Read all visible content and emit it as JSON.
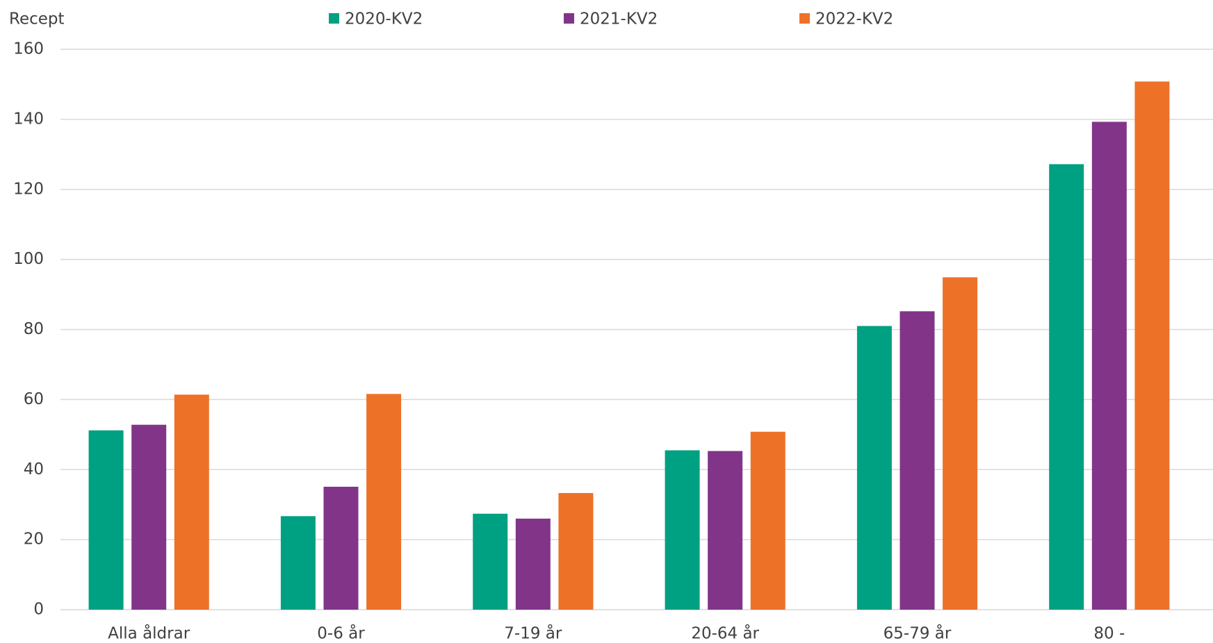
{
  "chart_data": {
    "type": "bar",
    "y_axis_label": "Recept",
    "categories": [
      "Alla åldrar",
      "0-6 år",
      "7-19 år",
      "20-64 år",
      "65-79 år",
      "80 -"
    ],
    "series": [
      {
        "name": "2020-KV2",
        "color": "#00a082",
        "values": [
          51.2,
          26.7,
          27.4,
          45.5,
          81.0,
          127.2
        ]
      },
      {
        "name": "2021-KV2",
        "color": "#823588",
        "values": [
          52.8,
          35.1,
          26.0,
          45.3,
          85.2,
          139.3
        ]
      },
      {
        "name": "2022-KV2",
        "color": "#ee7128",
        "values": [
          61.4,
          61.6,
          33.3,
          50.8,
          94.9,
          150.8
        ]
      }
    ],
    "ylim": [
      0,
      160
    ],
    "yticks": [
      0,
      20,
      40,
      60,
      80,
      100,
      120,
      140,
      160
    ],
    "grid": true,
    "legend": "top"
  }
}
